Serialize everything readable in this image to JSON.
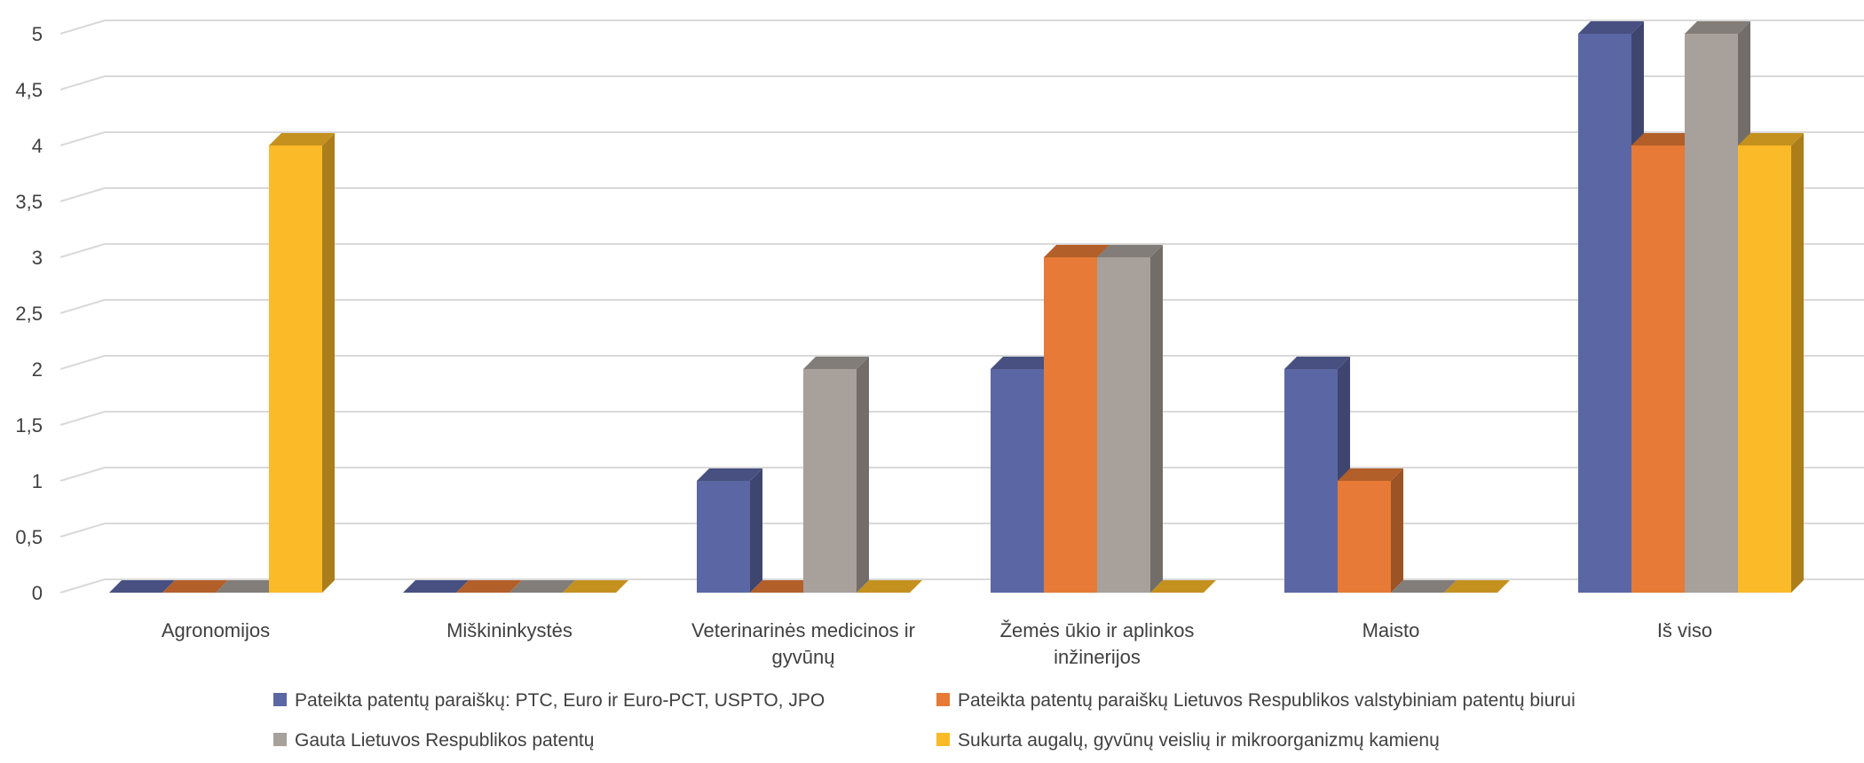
{
  "chart_data": {
    "type": "bar",
    "title": "",
    "xlabel": "",
    "ylabel": "",
    "ylim": [
      0,
      5
    ],
    "yticks": [
      "0",
      "0,5",
      "1",
      "1,5",
      "2",
      "2,5",
      "3",
      "3,5",
      "4",
      "4,5",
      "5"
    ],
    "categories": [
      [
        "Agronomijos"
      ],
      [
        "Miškininkystės"
      ],
      [
        "Veterinarinės medicinos ir",
        "gyvūnų"
      ],
      [
        "Žemės ūkio ir aplinkos",
        "inžinerijos"
      ],
      [
        "Maisto"
      ],
      [
        "Iš viso"
      ]
    ],
    "series": [
      {
        "name": "Pateikta patentų paraiškų: PTC, Euro ir Euro-PCT, USPTO, JPO",
        "color": "#5b67a4",
        "values": [
          0,
          0,
          1,
          2,
          2,
          5
        ]
      },
      {
        "name": "Pateikta patentų paraiškų Lietuvos Respublikos valstybiniam patentų biurui",
        "color": "#e67a36",
        "values": [
          0,
          0,
          0,
          3,
          1,
          4
        ]
      },
      {
        "name": "Gauta Lietuvos Respublikos patentų",
        "color": "#a7a09b",
        "values": [
          0,
          0,
          2,
          3,
          0,
          5
        ]
      },
      {
        "name": "Sukurta augalų, gyvūnų veislių ir mikroorganizmų kamienų",
        "color": "#fbba28",
        "values": [
          4,
          0,
          0,
          0,
          0,
          4
        ]
      }
    ],
    "grid": true,
    "legend_position": "bottom"
  }
}
